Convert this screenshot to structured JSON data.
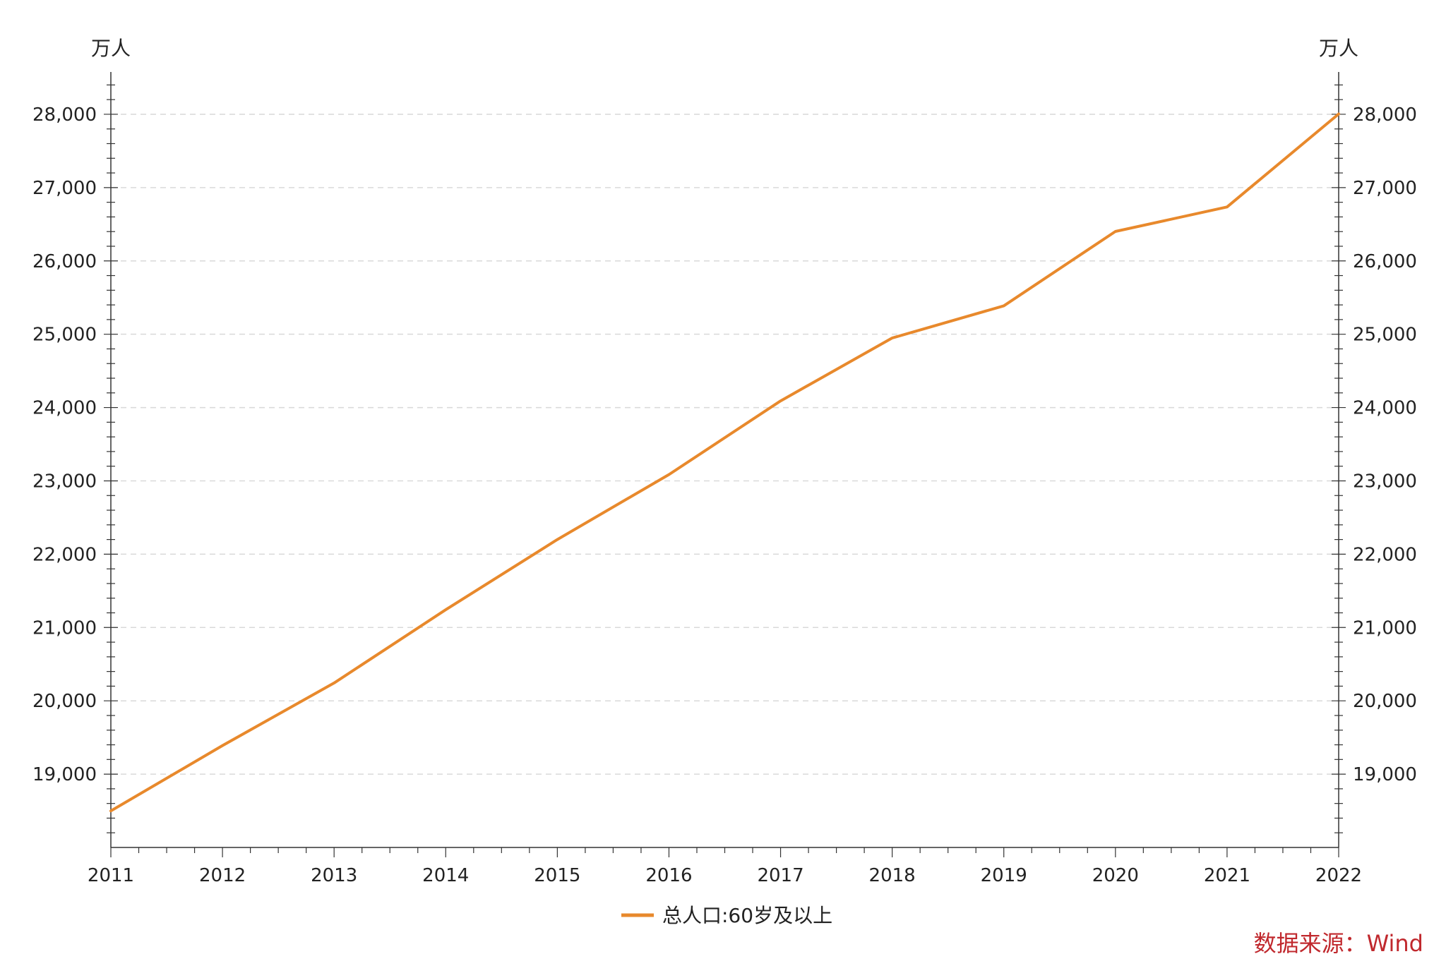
{
  "chart_data": {
    "type": "line",
    "y_unit_left": "万人",
    "y_unit_right": "万人",
    "x_ticks": [
      "2011",
      "2012",
      "2013",
      "2014",
      "2015",
      "2016",
      "2017",
      "2018",
      "2019",
      "2020",
      "2021",
      "2022"
    ],
    "y_ticks": [
      "19,000",
      "20,000",
      "21,000",
      "22,000",
      "23,000",
      "24,000",
      "25,000",
      "26,000",
      "27,000",
      "28,000"
    ],
    "xlim": [
      2011,
      2022
    ],
    "ylim": [
      18000,
      28500
    ],
    "grid": "horizontal dashed",
    "legend_position": "bottom-center",
    "series": [
      {
        "name": "总人口:60岁及以上",
        "color": "#E8892C",
        "x": [
          2011,
          2012,
          2013,
          2014,
          2015,
          2016,
          2017,
          2018,
          2019,
          2020,
          2021,
          2022
        ],
        "y": [
          18499,
          19390,
          20243,
          21242,
          22200,
          23086,
          24090,
          24949,
          25388,
          26402,
          26736,
          28004
        ]
      }
    ]
  },
  "source_label": "数据来源：Wind",
  "colors": {
    "source": "#C0282D",
    "axis": "#333333",
    "grid": "#D9D9D9"
  }
}
